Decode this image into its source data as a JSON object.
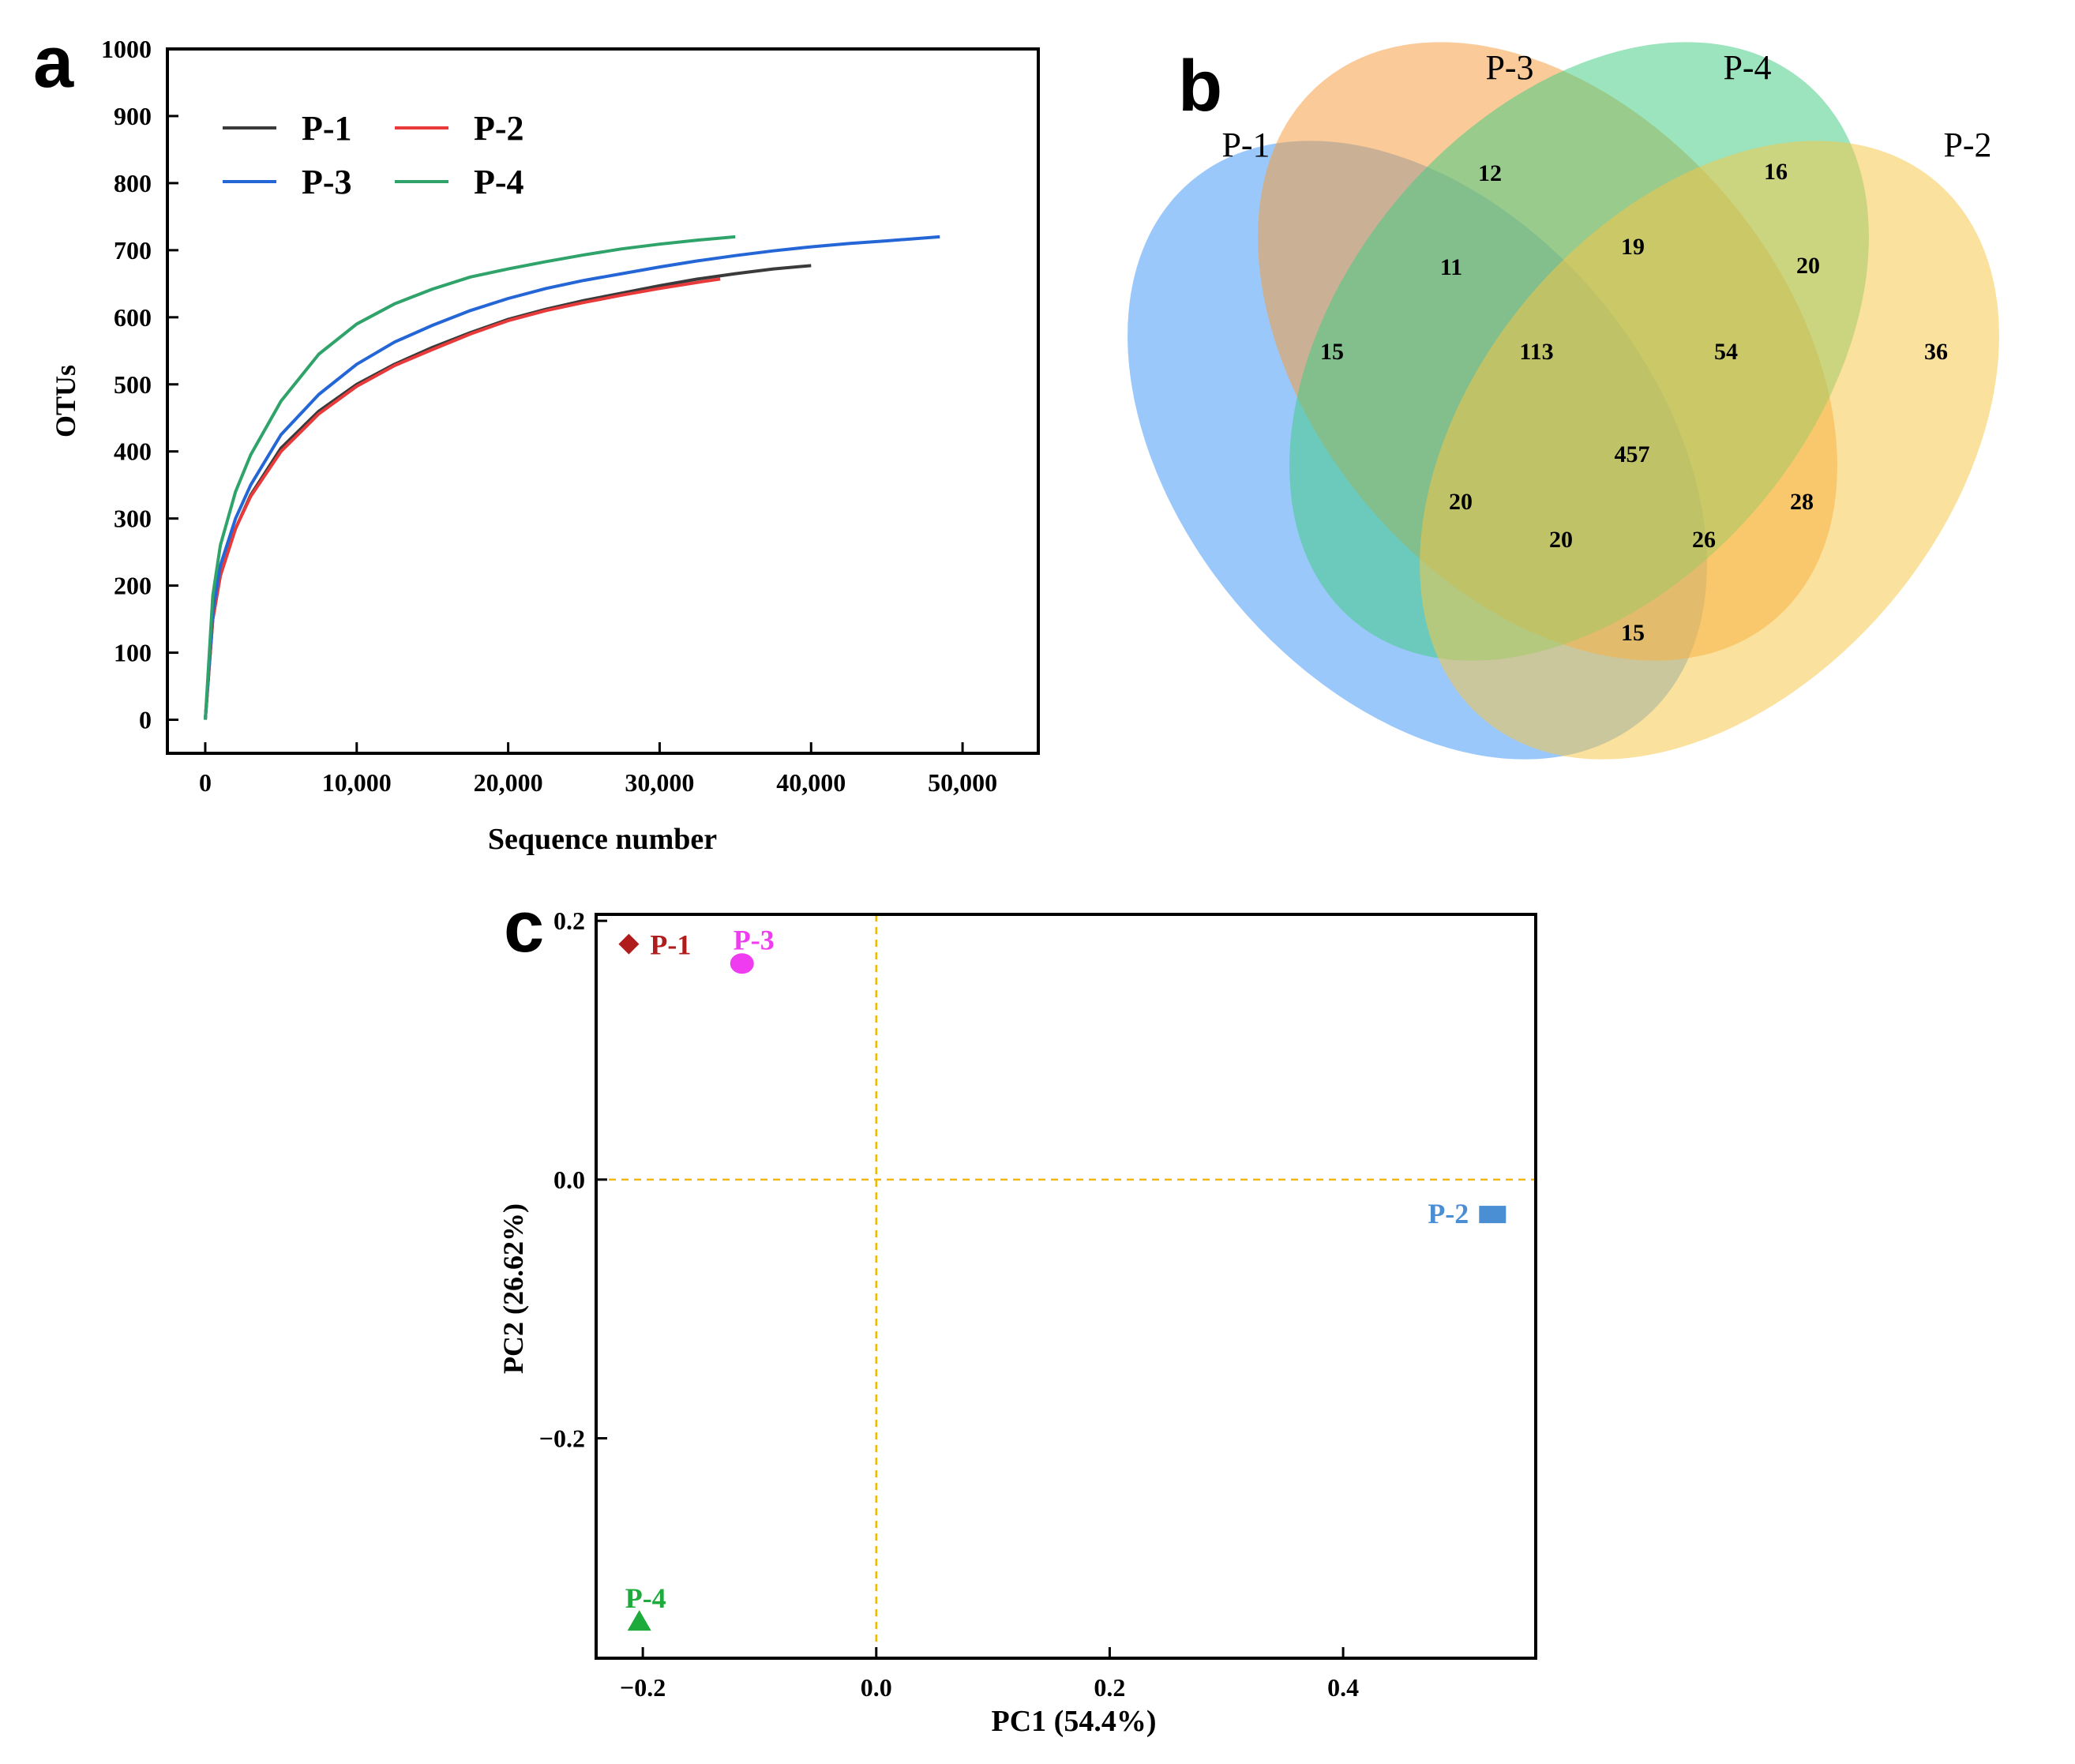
{
  "chart_data": [
    {
      "panel": "a",
      "type": "line",
      "title": "",
      "xlabel": "Sequence number",
      "ylabel": "OTUs",
      "xlim": [
        -2500,
        55000
      ],
      "ylim": [
        -50,
        1000
      ],
      "xticks": [
        0,
        10000,
        20000,
        30000,
        40000,
        50000
      ],
      "xtick_labels": [
        "0",
        "10,000",
        "20,000",
        "30,000",
        "40,000",
        "50,000"
      ],
      "yticks": [
        0,
        100,
        200,
        300,
        400,
        500,
        600,
        700,
        800,
        900,
        1000
      ],
      "ytick_labels": [
        "0",
        "100",
        "200",
        "300",
        "400",
        "500",
        "600",
        "700",
        "800",
        "900",
        "1000"
      ],
      "legend_position": "top-left",
      "series": [
        {
          "name": "P-1",
          "color": "#3a3a3a",
          "x": [
            0,
            500,
            1000,
            2000,
            3000,
            5000,
            7500,
            10000,
            12500,
            15000,
            17500,
            20000,
            22500,
            25000,
            27500,
            30000,
            32500,
            35000,
            37500,
            40000
          ],
          "y": [
            0,
            150,
            215,
            285,
            335,
            405,
            460,
            500,
            530,
            555,
            577,
            597,
            612,
            625,
            636,
            647,
            657,
            665,
            672,
            677
          ]
        },
        {
          "name": "P-2",
          "color": "#e83a3a",
          "x": [
            0,
            500,
            1000,
            2000,
            3000,
            5000,
            7500,
            10000,
            12500,
            15000,
            17500,
            20000,
            22500,
            25000,
            27500,
            30000,
            32500,
            34000
          ],
          "y": [
            0,
            150,
            215,
            285,
            333,
            400,
            456,
            497,
            528,
            552,
            575,
            595,
            610,
            622,
            633,
            643,
            652,
            657
          ]
        },
        {
          "name": "P-3",
          "color": "#2466d6",
          "x": [
            0,
            500,
            1000,
            2000,
            3000,
            5000,
            7500,
            10000,
            12500,
            15000,
            17500,
            20000,
            22500,
            25000,
            27500,
            30000,
            32500,
            35000,
            37500,
            40000,
            42500,
            45000,
            48500
          ],
          "y": [
            0,
            160,
            230,
            300,
            350,
            425,
            485,
            530,
            563,
            588,
            610,
            628,
            643,
            655,
            665,
            675,
            684,
            692,
            699,
            705,
            710,
            714,
            720
          ]
        },
        {
          "name": "P-4",
          "color": "#2fa36a",
          "x": [
            0,
            500,
            1000,
            2000,
            3000,
            5000,
            7500,
            10000,
            12500,
            15000,
            17500,
            20000,
            22500,
            25000,
            27500,
            30000,
            32500,
            35000
          ],
          "y": [
            0,
            185,
            260,
            340,
            395,
            475,
            545,
            590,
            620,
            642,
            660,
            672,
            683,
            693,
            702,
            709,
            715,
            720
          ]
        }
      ]
    },
    {
      "panel": "b",
      "type": "venn",
      "sets": [
        {
          "name": "P-1",
          "color": "#3f95f5"
        },
        {
          "name": "P-3",
          "color": "#f59c3a"
        },
        {
          "name": "P-4",
          "color": "#3fcb82"
        },
        {
          "name": "P-2",
          "color": "#f8c545"
        }
      ],
      "regions": [
        {
          "sets": [
            "P-1"
          ],
          "value": 15
        },
        {
          "sets": [
            "P-3"
          ],
          "value": 12
        },
        {
          "sets": [
            "P-4"
          ],
          "value": 16
        },
        {
          "sets": [
            "P-2"
          ],
          "value": 36
        },
        {
          "sets": [
            "P-1",
            "P-3"
          ],
          "value": 11
        },
        {
          "sets": [
            "P-3",
            "P-4"
          ],
          "value": 19
        },
        {
          "sets": [
            "P-4",
            "P-2"
          ],
          "value": 20
        },
        {
          "sets": [
            "P-1",
            "P-3",
            "P-4"
          ],
          "value": 113
        },
        {
          "sets": [
            "P-3",
            "P-4",
            "P-2"
          ],
          "value": 54
        },
        {
          "sets": [
            "P-1",
            "P-3",
            "P-4",
            "P-2"
          ],
          "value": 457
        },
        {
          "sets": [
            "P-1",
            "P-4"
          ],
          "value": 20
        },
        {
          "sets": [
            "P-3",
            "P-2"
          ],
          "value": 28
        },
        {
          "sets": [
            "P-1",
            "P-4",
            "P-2"
          ],
          "value": 20
        },
        {
          "sets": [
            "P-1",
            "P-3",
            "P-2"
          ],
          "value": 26
        },
        {
          "sets": [
            "P-1",
            "P-2"
          ],
          "value": 15
        }
      ]
    },
    {
      "panel": "c",
      "type": "scatter",
      "title": "",
      "xlabel": "PC1 (54.4%)",
      "ylabel": "PC2 (26.62%)",
      "xlim": [
        -0.24,
        0.565
      ],
      "ylim": [
        -0.37,
        0.205
      ],
      "xticks": [
        -0.2,
        0.0,
        0.2,
        0.4
      ],
      "xtick_labels": [
        "−0.2",
        "0.0",
        "0.2",
        "0.4"
      ],
      "yticks": [
        -0.2,
        0.0,
        0.2
      ],
      "ytick_labels": [
        "−0.2",
        "0.0",
        "0.2"
      ],
      "reference_lines": {
        "x": 0,
        "y": 0,
        "color": "#f5b800"
      },
      "points": [
        {
          "label": "P-1",
          "x": -0.212,
          "y": 0.182,
          "marker": "diamond",
          "color": "#b01c1c"
        },
        {
          "label": "P-3",
          "x": -0.115,
          "y": 0.167,
          "marker": "circle",
          "color": "#f03cf0"
        },
        {
          "label": "P-2",
          "x": 0.528,
          "y": -0.027,
          "marker": "square",
          "color": "#4a8fd4"
        },
        {
          "label": "P-4",
          "x": -0.203,
          "y": -0.342,
          "marker": "triangle",
          "color": "#1faa3c"
        }
      ]
    }
  ],
  "panel_labels": {
    "a": "a",
    "b": "b",
    "c": "c"
  }
}
